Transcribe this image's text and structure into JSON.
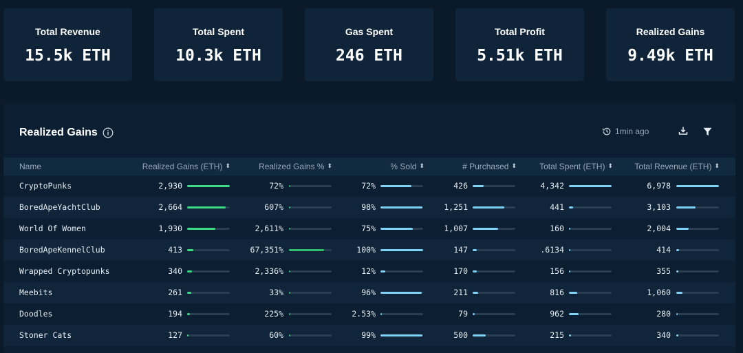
{
  "summary": [
    {
      "label": "Total Revenue",
      "value": "15.5k ETH"
    },
    {
      "label": "Total Spent",
      "value": "10.3k ETH"
    },
    {
      "label": "Gas Spent",
      "value": "246 ETH"
    },
    {
      "label": "Total Profit",
      "value": "5.51k ETH"
    },
    {
      "label": "Realized Gains",
      "value": "9.49k ETH"
    }
  ],
  "panel": {
    "title": "Realized Gains",
    "updated": "1min ago"
  },
  "colors": {
    "green": "#3ddc84",
    "blue": "#7fd3f7",
    "bg": "#0a1a2a"
  },
  "table": {
    "headers": [
      "Name",
      "Realized Gains (ETH)",
      "Realized Gains %",
      "% Sold",
      "# Purchased",
      "Total Spent (ETH)",
      "Total Revenue (ETH)"
    ],
    "rows": [
      {
        "name": "CryptoPunks",
        "gains": "2,930",
        "gains_frac": 1.0,
        "pct": "72%",
        "pct_frac": 0.005,
        "sold": "72%",
        "sold_frac": 0.72,
        "purchased": "426",
        "purchased_frac": 0.26,
        "spent": "4,342",
        "spent_frac": 1.0,
        "revenue": "6,978",
        "revenue_frac": 1.0
      },
      {
        "name": "BoredApeYachtClub",
        "gains": "2,664",
        "gains_frac": 0.91,
        "pct": "607%",
        "pct_frac": 0.01,
        "sold": "98%",
        "sold_frac": 0.98,
        "purchased": "1,251",
        "purchased_frac": 0.74,
        "spent": "441",
        "spent_frac": 0.1,
        "revenue": "3,103",
        "revenue_frac": 0.45
      },
      {
        "name": "World Of Women",
        "gains": "1,930",
        "gains_frac": 0.66,
        "pct": "2,611%",
        "pct_frac": 0.04,
        "sold": "75%",
        "sold_frac": 0.75,
        "purchased": "1,007",
        "purchased_frac": 0.6,
        "spent": "160",
        "spent_frac": 0.04,
        "revenue": "2,004",
        "revenue_frac": 0.29
      },
      {
        "name": "BoredApeKennelClub",
        "gains": "413",
        "gains_frac": 0.14,
        "pct": "67,351%",
        "pct_frac": 0.82,
        "sold": "100%",
        "sold_frac": 1.0,
        "purchased": "147",
        "purchased_frac": 0.09,
        "spent": ".6134",
        "spent_frac": 0.0,
        "revenue": "414",
        "revenue_frac": 0.06
      },
      {
        "name": "Wrapped Cryptopunks",
        "gains": "340",
        "gains_frac": 0.12,
        "pct": "2,336%",
        "pct_frac": 0.03,
        "sold": "12%",
        "sold_frac": 0.12,
        "purchased": "170",
        "purchased_frac": 0.1,
        "spent": "156",
        "spent_frac": 0.04,
        "revenue": "355",
        "revenue_frac": 0.05
      },
      {
        "name": "Meebits",
        "gains": "261",
        "gains_frac": 0.09,
        "pct": "33%",
        "pct_frac": 0.005,
        "sold": "96%",
        "sold_frac": 0.96,
        "purchased": "211",
        "purchased_frac": 0.13,
        "spent": "816",
        "spent_frac": 0.19,
        "revenue": "1,060",
        "revenue_frac": 0.15
      },
      {
        "name": "Doodles",
        "gains": "194",
        "gains_frac": 0.07,
        "pct": "225%",
        "pct_frac": 0.005,
        "sold": "2.53%",
        "sold_frac": 0.025,
        "purchased": "79",
        "purchased_frac": 0.05,
        "spent": "962",
        "spent_frac": 0.22,
        "revenue": "280",
        "revenue_frac": 0.04
      },
      {
        "name": "Stoner Cats",
        "gains": "127",
        "gains_frac": 0.04,
        "pct": "60%",
        "pct_frac": 0.005,
        "sold": "99%",
        "sold_frac": 0.99,
        "purchased": "500",
        "purchased_frac": 0.3,
        "spent": "215",
        "spent_frac": 0.05,
        "revenue": "340",
        "revenue_frac": 0.05
      }
    ]
  }
}
